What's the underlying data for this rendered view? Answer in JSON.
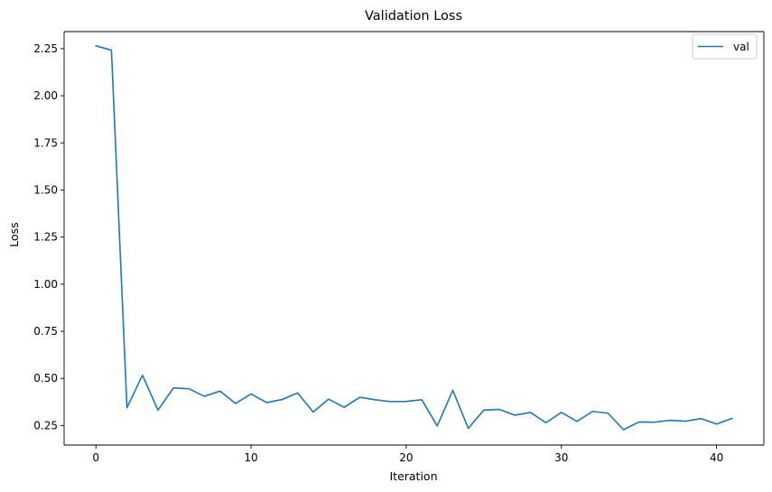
{
  "colors": {
    "series": "#1f77b4",
    "axes": "#000000",
    "background": "#ffffff",
    "legend_border": "#cccccc"
  },
  "chart_data": {
    "type": "line",
    "title": "Validation Loss",
    "xlabel": "Iteration",
    "ylabel": "Loss",
    "xlim": [
      -2.05,
      43.05
    ],
    "ylim": [
      0.1465,
      2.3405
    ],
    "grid": false,
    "legend_position": "top-right",
    "x_ticks": [
      0,
      10,
      20,
      30,
      40
    ],
    "x_tick_labels": [
      "0",
      "10",
      "20",
      "30",
      "40"
    ],
    "y_ticks": [
      0.25,
      0.5,
      0.75,
      1.0,
      1.25,
      1.5,
      1.75,
      2.0,
      2.25
    ],
    "y_tick_labels": [
      "0.25",
      "0.50",
      "0.75",
      "1.00",
      "1.25",
      "1.50",
      "1.75",
      "2.00",
      "2.25"
    ],
    "series": [
      {
        "name": "val",
        "color": "#1f77b4",
        "x": [
          0,
          1,
          2,
          3,
          4,
          5,
          6,
          7,
          8,
          9,
          10,
          11,
          12,
          13,
          14,
          15,
          16,
          17,
          18,
          19,
          20,
          21,
          22,
          23,
          24,
          25,
          26,
          27,
          28,
          29,
          30,
          31,
          32,
          33,
          34,
          35,
          36,
          37,
          38,
          39,
          40,
          41
        ],
        "y": [
          2.265,
          2.242,
          0.345,
          0.517,
          0.332,
          0.45,
          0.445,
          0.405,
          0.433,
          0.367,
          0.418,
          0.372,
          0.388,
          0.423,
          0.322,
          0.39,
          0.347,
          0.4,
          0.387,
          0.377,
          0.378,
          0.387,
          0.248,
          0.437,
          0.235,
          0.332,
          0.336,
          0.305,
          0.32,
          0.265,
          0.32,
          0.272,
          0.325,
          0.316,
          0.228,
          0.269,
          0.268,
          0.278,
          0.273,
          0.287,
          0.258,
          0.288
        ]
      }
    ]
  }
}
